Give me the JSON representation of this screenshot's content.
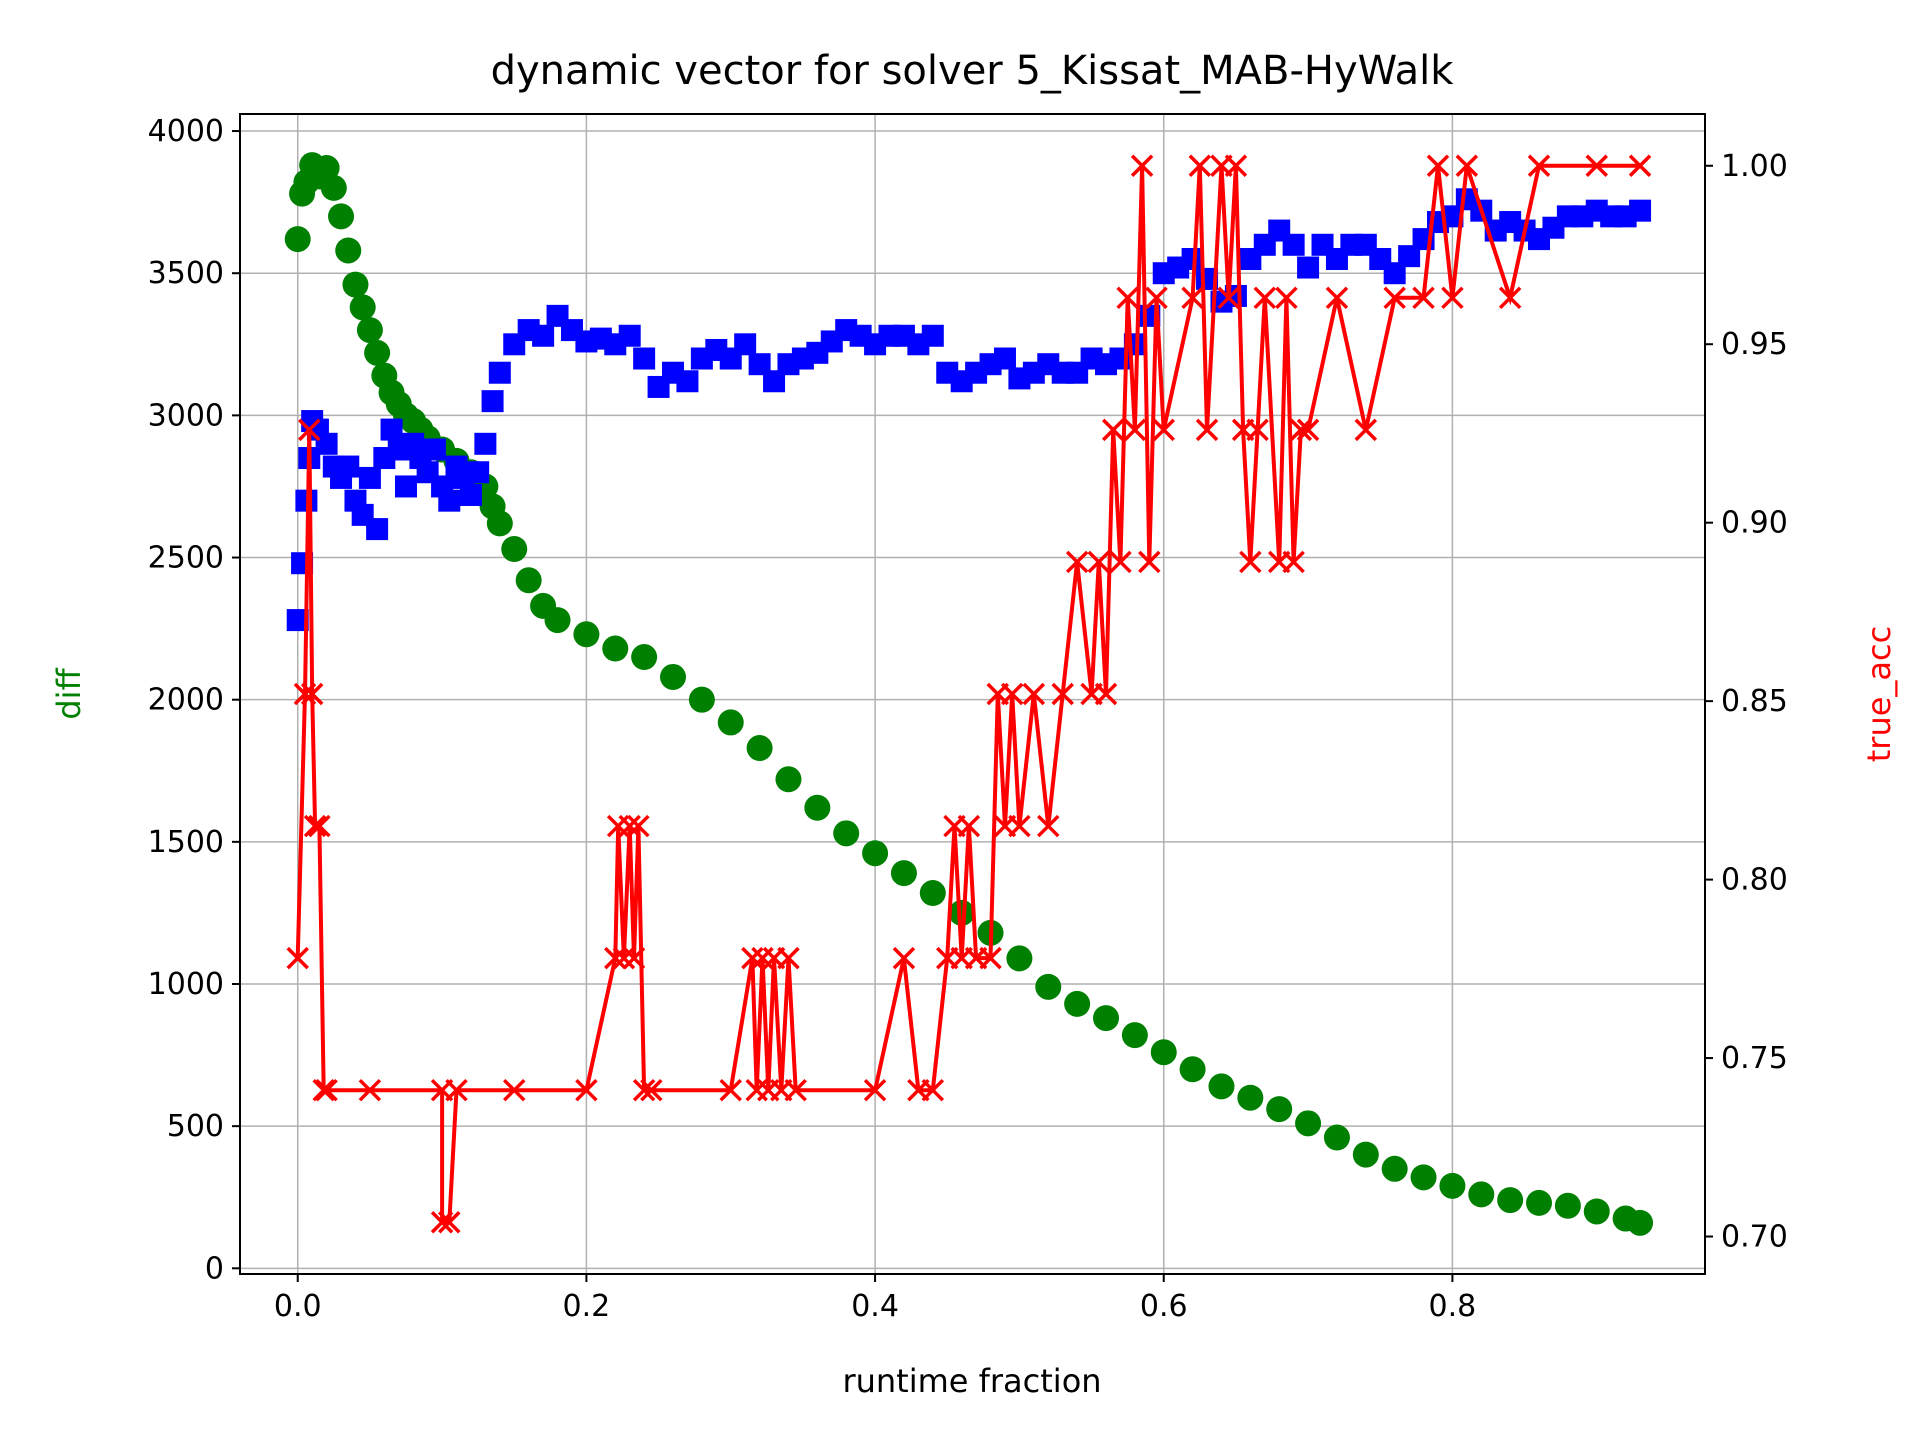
{
  "chart_data": {
    "type": "line",
    "title": "dynamic vector for solver 5_Kissat_MAB-HyWalk",
    "xlabel": "runtime fraction",
    "ylabel_left": "diff",
    "ylabel_right": "true_acc",
    "xlim": [
      -0.04,
      0.975
    ],
    "ylim_left": [
      -20,
      4060
    ],
    "ylim_right": [
      0.6895,
      1.0145
    ],
    "x_ticks": [
      0.0,
      0.2,
      0.4,
      0.6,
      0.8
    ],
    "x_tick_labels": [
      "0.0",
      "0.2",
      "0.4",
      "0.6",
      "0.8"
    ],
    "y_left_ticks": [
      0,
      500,
      1000,
      1500,
      2000,
      2500,
      3000,
      3500,
      4000
    ],
    "y_left_tick_labels": [
      "0",
      "500",
      "1000",
      "1500",
      "2000",
      "2500",
      "3000",
      "3500",
      "4000"
    ],
    "y_right_ticks": [
      0.7,
      0.75,
      0.8,
      0.85,
      0.9,
      0.95,
      1.0
    ],
    "y_right_tick_labels": [
      "0.70",
      "0.75",
      "0.80",
      "0.85",
      "0.90",
      "0.95",
      "1.00"
    ],
    "grid": true,
    "colors": {
      "diff": "#008000",
      "blue_series": "#0000ff",
      "true_acc": "#ff0000",
      "left_label": "#008000",
      "right_label": "#ff0000"
    },
    "series": [
      {
        "axis": "left",
        "color": "#008000",
        "marker": "circle",
        "x": [
          0.0,
          0.003,
          0.006,
          0.01,
          0.013,
          0.016,
          0.02,
          0.025,
          0.03,
          0.035,
          0.04,
          0.045,
          0.05,
          0.055,
          0.06,
          0.065,
          0.07,
          0.075,
          0.08,
          0.085,
          0.09,
          0.1,
          0.11,
          0.12,
          0.13,
          0.135,
          0.14,
          0.15,
          0.16,
          0.17,
          0.18,
          0.2,
          0.22,
          0.24,
          0.26,
          0.28,
          0.3,
          0.32,
          0.34,
          0.36,
          0.38,
          0.4,
          0.42,
          0.44,
          0.46,
          0.48,
          0.5,
          0.52,
          0.54,
          0.56,
          0.58,
          0.6,
          0.62,
          0.64,
          0.66,
          0.68,
          0.7,
          0.72,
          0.74,
          0.76,
          0.78,
          0.8,
          0.82,
          0.84,
          0.86,
          0.88,
          0.9,
          0.92,
          0.93
        ],
        "y": [
          3620,
          3780,
          3820,
          3880,
          3860,
          3840,
          3870,
          3800,
          3700,
          3580,
          3460,
          3380,
          3300,
          3220,
          3140,
          3080,
          3040,
          3000,
          2980,
          2950,
          2920,
          2880,
          2840,
          2800,
          2750,
          2680,
          2620,
          2530,
          2420,
          2330,
          2280,
          2230,
          2180,
          2150,
          2080,
          2000,
          1920,
          1830,
          1720,
          1620,
          1530,
          1460,
          1390,
          1320,
          1250,
          1180,
          1090,
          990,
          930,
          880,
          820,
          760,
          700,
          640,
          600,
          560,
          510,
          460,
          400,
          350,
          320,
          290,
          260,
          240,
          230,
          220,
          200,
          175,
          160
        ]
      },
      {
        "axis": "left",
        "color": "#0000ff",
        "marker": "square",
        "x": [
          0.0,
          0.003,
          0.006,
          0.008,
          0.01,
          0.014,
          0.02,
          0.025,
          0.03,
          0.035,
          0.04,
          0.045,
          0.05,
          0.055,
          0.06,
          0.065,
          0.07,
          0.075,
          0.08,
          0.085,
          0.09,
          0.095,
          0.1,
          0.105,
          0.11,
          0.115,
          0.12,
          0.125,
          0.13,
          0.135,
          0.14,
          0.15,
          0.16,
          0.17,
          0.18,
          0.19,
          0.2,
          0.21,
          0.22,
          0.23,
          0.24,
          0.25,
          0.26,
          0.27,
          0.28,
          0.29,
          0.3,
          0.31,
          0.32,
          0.33,
          0.34,
          0.35,
          0.36,
          0.37,
          0.38,
          0.39,
          0.4,
          0.41,
          0.42,
          0.43,
          0.44,
          0.45,
          0.46,
          0.47,
          0.48,
          0.49,
          0.5,
          0.51,
          0.52,
          0.53,
          0.54,
          0.55,
          0.56,
          0.57,
          0.58,
          0.59,
          0.6,
          0.61,
          0.62,
          0.63,
          0.64,
          0.65,
          0.66,
          0.67,
          0.68,
          0.69,
          0.7,
          0.71,
          0.72,
          0.73,
          0.74,
          0.75,
          0.76,
          0.77,
          0.78,
          0.79,
          0.8,
          0.81,
          0.82,
          0.83,
          0.84,
          0.85,
          0.86,
          0.87,
          0.88,
          0.89,
          0.9,
          0.91,
          0.92,
          0.93
        ],
        "y": [
          2280,
          2480,
          2700,
          2850,
          2980,
          2950,
          2900,
          2820,
          2780,
          2820,
          2700,
          2650,
          2780,
          2600,
          2850,
          2950,
          2880,
          2750,
          2900,
          2850,
          2800,
          2880,
          2750,
          2700,
          2820,
          2780,
          2720,
          2800,
          2900,
          3050,
          3150,
          3250,
          3300,
          3280,
          3350,
          3300,
          3260,
          3270,
          3250,
          3280,
          3200,
          3100,
          3150,
          3120,
          3200,
          3230,
          3200,
          3250,
          3180,
          3120,
          3180,
          3200,
          3220,
          3260,
          3300,
          3280,
          3250,
          3280,
          3280,
          3250,
          3280,
          3150,
          3120,
          3150,
          3180,
          3200,
          3130,
          3150,
          3180,
          3150,
          3150,
          3200,
          3180,
          3200,
          3250,
          3350,
          3500,
          3520,
          3550,
          3480,
          3400,
          3420,
          3550,
          3600,
          3650,
          3600,
          3520,
          3600,
          3550,
          3600,
          3600,
          3550,
          3500,
          3560,
          3620,
          3680,
          3700,
          3760,
          3720,
          3650,
          3680,
          3650,
          3620,
          3660,
          3700,
          3700,
          3720,
          3700,
          3700,
          3720
        ]
      },
      {
        "axis": "right",
        "color": "#ff0000",
        "marker": "x",
        "x": [
          0.0,
          0.005,
          0.008,
          0.01,
          0.012,
          0.015,
          0.018,
          0.02,
          0.05,
          0.1,
          0.1,
          0.105,
          0.11,
          0.15,
          0.2,
          0.22,
          0.222,
          0.226,
          0.23,
          0.233,
          0.236,
          0.24,
          0.245,
          0.3,
          0.315,
          0.318,
          0.322,
          0.326,
          0.33,
          0.335,
          0.34,
          0.345,
          0.4,
          0.42,
          0.43,
          0.44,
          0.45,
          0.455,
          0.46,
          0.465,
          0.47,
          0.48,
          0.485,
          0.49,
          0.495,
          0.5,
          0.51,
          0.52,
          0.53,
          0.54,
          0.55,
          0.555,
          0.56,
          0.565,
          0.57,
          0.575,
          0.58,
          0.585,
          0.59,
          0.595,
          0.6,
          0.62,
          0.625,
          0.63,
          0.64,
          0.645,
          0.65,
          0.655,
          0.66,
          0.665,
          0.67,
          0.68,
          0.685,
          0.69,
          0.695,
          0.7,
          0.72,
          0.74,
          0.76,
          0.78,
          0.79,
          0.8,
          0.81,
          0.84,
          0.86,
          0.9,
          0.93
        ],
        "y": [
          0.778,
          0.852,
          0.926,
          0.852,
          0.815,
          0.815,
          0.741,
          0.741,
          0.741,
          0.741,
          0.704,
          0.704,
          0.741,
          0.741,
          0.741,
          0.778,
          0.815,
          0.778,
          0.815,
          0.778,
          0.815,
          0.741,
          0.741,
          0.741,
          0.778,
          0.741,
          0.778,
          0.741,
          0.778,
          0.741,
          0.778,
          0.741,
          0.741,
          0.778,
          0.741,
          0.741,
          0.778,
          0.815,
          0.778,
          0.815,
          0.778,
          0.778,
          0.852,
          0.815,
          0.852,
          0.815,
          0.852,
          0.815,
          0.852,
          0.889,
          0.852,
          0.889,
          0.852,
          0.926,
          0.889,
          0.963,
          0.926,
          1.0,
          0.889,
          0.963,
          0.926,
          0.963,
          1.0,
          0.926,
          1.0,
          0.963,
          1.0,
          0.926,
          0.889,
          0.926,
          0.963,
          0.889,
          0.963,
          0.889,
          0.926,
          0.926,
          0.963,
          0.926,
          0.963,
          0.963,
          1.0,
          0.963,
          1.0,
          0.963,
          1.0,
          1.0,
          1.0
        ]
      }
    ]
  }
}
